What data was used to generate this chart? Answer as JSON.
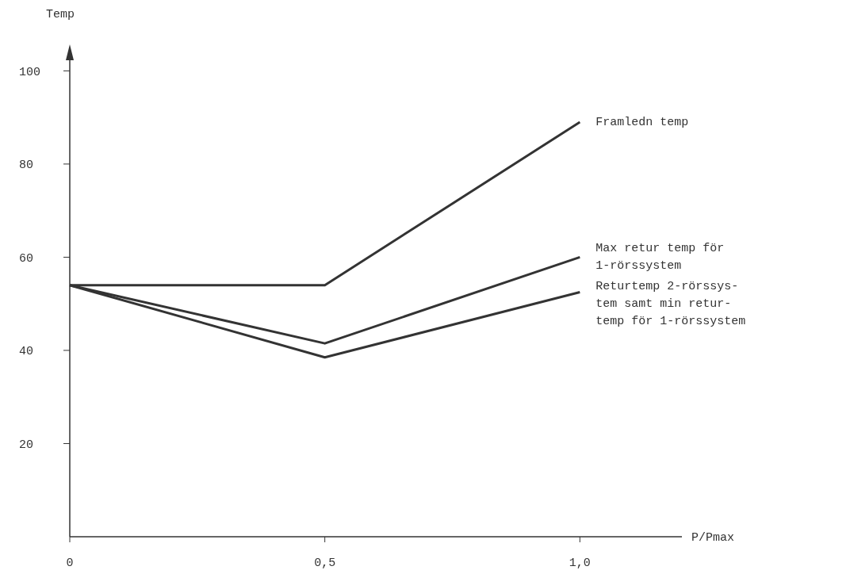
{
  "chart_data": {
    "type": "line",
    "ylabel": "Temp",
    "xlabel": "P/Pmax",
    "x": [
      0,
      0.5,
      1.0
    ],
    "xlim": [
      0,
      1.2
    ],
    "xticks": [
      {
        "value": 0,
        "label": "0"
      },
      {
        "value": 0.5,
        "label": "0,5"
      },
      {
        "value": 1.0,
        "label": "1,0"
      }
    ],
    "ylim": [
      0,
      105
    ],
    "yticks": [
      20,
      40,
      60,
      80,
      100
    ],
    "grid": false,
    "marker": "none",
    "line_style": "solid",
    "series": [
      {
        "name": "Framledn temp",
        "color": "#333333",
        "values": [
          54,
          54,
          89
        ]
      },
      {
        "name": "Max retur temp för\n1-rörssystem",
        "color": "#333333",
        "values": [
          54,
          41.5,
          60
        ]
      },
      {
        "name": "Returtemp 2-rörssys-\ntem samt min retur-\ntemp för 1-rörssystem",
        "color": "#333333",
        "values": [
          54,
          38.5,
          52.5
        ]
      }
    ]
  }
}
